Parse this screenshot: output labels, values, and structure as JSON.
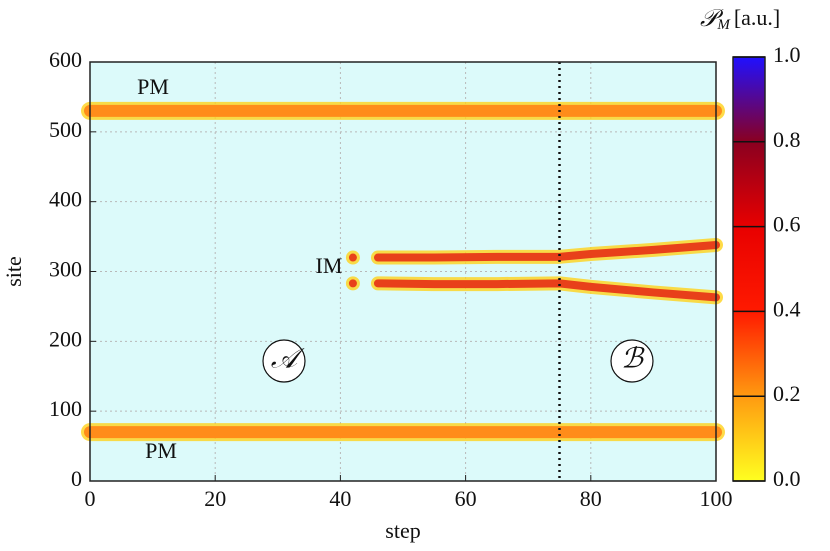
{
  "chart_data": {
    "type": "line",
    "xlabel": "step",
    "ylabel": "site",
    "xlim": [
      0,
      100
    ],
    "xticks": [
      0,
      20,
      40,
      60,
      80,
      100
    ],
    "ylim": [
      0,
      600
    ],
    "yticks": [
      0,
      100,
      200,
      300,
      400,
      500,
      600
    ],
    "grid": true,
    "background": "#dcfafa",
    "vline": 75,
    "series": [
      {
        "name": "PM",
        "color": "#ff8c1a",
        "x": [
          0,
          100
        ],
        "values": [
          530,
          530
        ]
      },
      {
        "name": "PM",
        "color": "#ff8c1a",
        "x": [
          0,
          100
        ],
        "values": [
          70,
          70
        ]
      },
      {
        "name": "IM",
        "color": "#e8401a",
        "x": [
          42,
          44,
          46,
          55,
          65,
          75,
          80,
          90,
          100
        ],
        "values": [
          320,
          null,
          320,
          320,
          321,
          321,
          325,
          331,
          338
        ]
      },
      {
        "name": "IM",
        "color": "#e8401a",
        "x": [
          42,
          44,
          46,
          55,
          65,
          75,
          80,
          90,
          100
        ],
        "values": [
          283,
          null,
          283,
          282,
          282,
          283,
          278,
          270,
          263
        ]
      }
    ],
    "annotations": [
      "PM",
      "PM",
      "IM",
      "𝒜",
      "ℬ"
    ],
    "colorbar": {
      "symbol": "𝒫",
      "subscript": "M",
      "unit": "[a.u.]",
      "clim": [
        0,
        1
      ],
      "ticks": [
        {
          "value": 0,
          "label": "0.0"
        },
        0.2,
        0.4,
        0.6,
        0.8,
        {
          "value": 1,
          "label": "1.0"
        }
      ],
      "colors": [
        "#ffff20",
        "#ff9a10",
        "#ff1a00",
        "#e80000",
        "#8a0020",
        "#2010ff"
      ]
    }
  }
}
